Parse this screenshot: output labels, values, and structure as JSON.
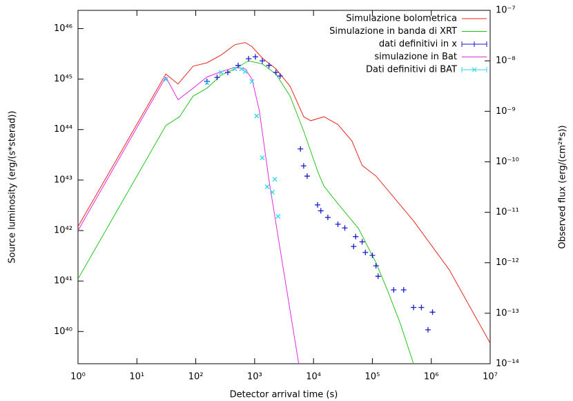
{
  "chart_data": {
    "type": "line",
    "xlabel": "Detector arrival time (s)",
    "ylabel": "Source luminosity (erg/(s*sterad))",
    "y2label": "Observed flux (erg/(cm²*s))",
    "xscale": "log",
    "yscale": "log",
    "y2scale": "log",
    "xlim": [
      1,
      10000000
    ],
    "ylim": [
      2.3e+39,
      2.3e+46
    ],
    "y2lim": [
      1e-14,
      1e-07
    ],
    "xticks": [
      {
        "value": 1,
        "label": "10⁰"
      },
      {
        "value": 10,
        "label": "10¹"
      },
      {
        "value": 100,
        "label": "10²"
      },
      {
        "value": 1000,
        "label": "10³"
      },
      {
        "value": 10000,
        "label": "10⁴"
      },
      {
        "value": 100000,
        "label": "10⁵"
      },
      {
        "value": 1000000,
        "label": "10⁶"
      },
      {
        "value": 10000000,
        "label": "10⁷"
      }
    ],
    "yticks": [
      {
        "value": 1e+40,
        "label": "10⁴⁰"
      },
      {
        "value": 1e+41,
        "label": "10⁴¹"
      },
      {
        "value": 1e+42,
        "label": "10⁴²"
      },
      {
        "value": 1e+43,
        "label": "10⁴³"
      },
      {
        "value": 1e+44,
        "label": "10⁴⁴"
      },
      {
        "value": 1e+45,
        "label": "10⁴⁵"
      },
      {
        "value": 1e+46,
        "label": "10⁴⁶"
      }
    ],
    "y2ticks": [
      {
        "value": 1e-14,
        "label": "10⁻¹⁴"
      },
      {
        "value": 1e-13,
        "label": "10⁻¹³"
      },
      {
        "value": 1e-12,
        "label": "10⁻¹²"
      },
      {
        "value": 1e-11,
        "label": "10⁻¹¹"
      },
      {
        "value": 1e-10,
        "label": "10⁻¹⁰"
      },
      {
        "value": 1e-09,
        "label": "10⁻⁹"
      },
      {
        "value": 1e-08,
        "label": "10⁻⁸"
      },
      {
        "value": 1e-07,
        "label": "10⁻⁷"
      }
    ],
    "legend": "upper right",
    "series": [
      {
        "name": "Simulazione bolometrica",
        "color": "#e8251c",
        "x": [
          1,
          31,
          50,
          90,
          155,
          270,
          460,
          690,
          900,
          1350,
          2300,
          4000,
          6800,
          9000,
          15000,
          26000,
          45000,
          67000,
          115000,
          500000,
          2000000,
          10000000
        ],
        "values": [
          1.2e+42,
          1.26e+45,
          8e+44,
          1.8e+45,
          2.1e+45,
          3e+45,
          4.8e+45,
          5.3e+45,
          4.4e+45,
          2.6e+45,
          1.6e+45,
          7.2e+44,
          1.8e+44,
          1.5e+44,
          1.8e+44,
          1.26e+44,
          5.9e+43,
          1.95e+43,
          1.2e+43,
          1.55e+42,
          1.7e+41,
          5.9e+39
        ]
      },
      {
        "name": "Simulazione in banda di XRT",
        "color": "#22c61c",
        "x": [
          1,
          31,
          53,
          90,
          155,
          270,
          460,
          790,
          1350,
          2300,
          4000,
          6800,
          12000,
          15000,
          26000,
          58000,
          115000,
          180000,
          300000,
          500000
        ],
        "values": [
          1.1e+41,
          1.2e+44,
          1.8e+44,
          4.6e+44,
          6.6e+44,
          1.2e+45,
          1.6e+45,
          2.3e+45,
          2e+45,
          1.26e+45,
          4.6e+44,
          9.3e+43,
          1.4e+43,
          7.6e+42,
          3.4e+42,
          1.1e+42,
          2.3e+41,
          6.6e+40,
          1.4e+40,
          2.3e+39
        ]
      },
      {
        "name": "dati definitivi in x",
        "color": "#1a1acc",
        "axis": "y2",
        "marker": "+",
        "x": [
          155,
          230,
          350,
          525,
          790,
          1030,
          1350,
          1750,
          2300,
          2700,
          6000,
          6800,
          7800,
          11700,
          13300,
          17500,
          26000,
          34000,
          52000,
          48000,
          67000,
          76000,
          100000,
          115000,
          125000,
          230000,
          340000,
          500000,
          680000,
          880000,
          1050000
        ],
        "values": [
          3.9e-09,
          4.7e-09,
          5.9e-09,
          8.1e-09,
          1.1e-08,
          1.2e-08,
          1e-08,
          8.1e-09,
          5.9e-09,
          5e-09,
          1.8e-10,
          8.3e-11,
          5.2e-11,
          1.4e-11,
          1.07e-11,
          7.9e-12,
          5.8e-12,
          4.9e-12,
          3.3e-12,
          2.1e-12,
          2.6e-12,
          1.6e-12,
          1.4e-12,
          8.7e-13,
          5.4e-13,
          2.9e-13,
          2.9e-13,
          1.3e-13,
          1.3e-13,
          4.7e-14,
          1.05e-13
        ]
      },
      {
        "name": "simulazione in Bat",
        "color": "#e02ae0",
        "x": [
          1,
          31,
          50,
          90,
          155,
          270,
          460,
          690,
          900,
          1200,
          1750,
          2700,
          4000,
          5600
        ],
        "values": [
          1e+42,
          1.1e+45,
          3.9e+44,
          6.6e+44,
          1.1e+45,
          1.4e+45,
          1.7e+45,
          1.6e+45,
          1e+45,
          2.4e+44,
          1e+43,
          4.4e+41,
          2.6e+40,
          2.3e+39
        ]
      },
      {
        "name": "Dati definitivi di BAT",
        "color": "#2ad6e6",
        "axis": "y2",
        "marker": "x",
        "x": [
          31,
          155,
          270,
          460,
          600,
          690,
          900,
          1080,
          1350,
          1630,
          2000,
          2200,
          2500
        ],
        "values": [
          4.3e-09,
          3.7e-09,
          5.9e-09,
          6.9e-09,
          6.9e-09,
          6.1e-09,
          3.9e-09,
          8.1e-10,
          1.2e-10,
          3.2e-11,
          2.5e-11,
          4.5e-11,
          8.3e-12
        ]
      }
    ]
  }
}
